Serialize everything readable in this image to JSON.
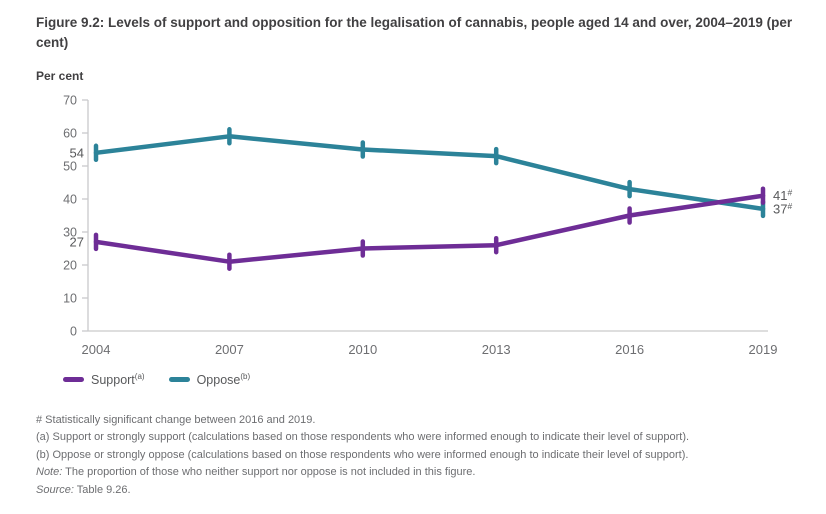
{
  "figure": {
    "title": "Figure 9.2: Levels of support and opposition for the legalisation of cannabis, people aged 14 and over, 2004–2019 (per cent)"
  },
  "chart_data": {
    "type": "line",
    "title": "Levels of support and opposition for the legalisation of cannabis, people aged 14 and over, 2004–2019",
    "ylabel": "Per cent",
    "xlabel": "",
    "x": [
      "2004",
      "2007",
      "2010",
      "2013",
      "2016",
      "2019"
    ],
    "series": [
      {
        "name": "Oppose",
        "sup": "(b)",
        "color": "#2c8399",
        "values": [
          54,
          59,
          55,
          53,
          43,
          37
        ],
        "start_label": "54",
        "end_label": "37",
        "end_label_sup": "#"
      },
      {
        "name": "Support",
        "sup": "(a)",
        "color": "#6e2d96",
        "values": [
          27,
          21,
          25,
          26,
          35,
          41
        ],
        "start_label": "27",
        "end_label": "41",
        "end_label_sup": "#"
      }
    ],
    "ylim": [
      0,
      70
    ],
    "ytick_step": 10,
    "grid": false,
    "legend_position": "bottom-left",
    "axis_color": "#c9cacb",
    "tick_text_color": "#6d6e71",
    "data_label_color": "#58595b"
  },
  "footnotes": [
    {
      "prefix": "",
      "text": "# Statistically significant change between 2016 and 2019."
    },
    {
      "prefix": "",
      "text": "(a) Support or strongly support (calculations based on those respondents who were informed enough to indicate their level of support)."
    },
    {
      "prefix": "",
      "text": "(b) Oppose or strongly oppose (calculations based on those respondents who were informed enough to indicate their level of support)."
    },
    {
      "prefix": "Note:",
      "text": " The proportion of those who neither support nor oppose is not included in this figure."
    },
    {
      "prefix": "Source:",
      "text": " Table 9.26."
    }
  ]
}
